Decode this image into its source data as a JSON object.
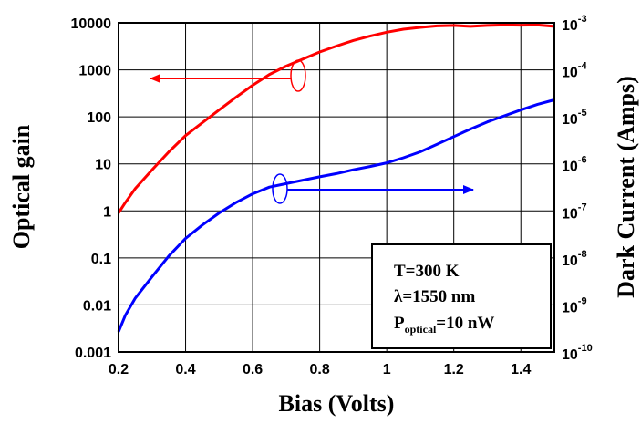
{
  "chart_data": {
    "type": "line",
    "xlabel": "Bias (Volts)",
    "ylabel": "Optical gain",
    "y2label": "Dark Current (Amps)",
    "xlim": [
      0.2,
      1.5
    ],
    "ylim": [
      0.001,
      10000
    ],
    "y2lim": [
      1e-10,
      0.001
    ],
    "yscale": "log",
    "y2scale": "log",
    "grid": true,
    "x_ticks": [
      "0.2",
      "0.4",
      "0.6",
      "0.8",
      "1",
      "1.2",
      "1.4"
    ],
    "y_ticks": [
      "0.001",
      "0.01",
      "0.1",
      "1",
      "10",
      "100",
      "1000",
      "10000"
    ],
    "y2_ticks": [
      {
        "base": "10",
        "exp": "-10"
      },
      {
        "base": "10",
        "exp": "-9"
      },
      {
        "base": "10",
        "exp": "-8"
      },
      {
        "base": "10",
        "exp": "-7"
      },
      {
        "base": "10",
        "exp": "-6"
      },
      {
        "base": "10",
        "exp": "-5"
      },
      {
        "base": "10",
        "exp": "-4"
      },
      {
        "base": "10",
        "exp": "-3"
      }
    ],
    "series": [
      {
        "axis": "left",
        "color": "#ff0000",
        "x": [
          0.2,
          0.22,
          0.25,
          0.3,
          0.35,
          0.4,
          0.45,
          0.5,
          0.55,
          0.6,
          0.65,
          0.7,
          0.75,
          0.8,
          0.85,
          0.9,
          0.95,
          1.0,
          1.05,
          1.1,
          1.15,
          1.2,
          1.25,
          1.3,
          1.35,
          1.4,
          1.45,
          1.5
        ],
        "y": [
          0.9,
          1.5,
          3.0,
          7.5,
          18,
          40,
          75,
          140,
          260,
          470,
          800,
          1200,
          1700,
          2400,
          3200,
          4200,
          5200,
          6300,
          7300,
          8000,
          8600,
          8800,
          8400,
          8800,
          9000,
          8900,
          9000,
          8400
        ]
      },
      {
        "axis": "right",
        "color": "#0000ff",
        "x": [
          0.2,
          0.22,
          0.25,
          0.3,
          0.35,
          0.4,
          0.45,
          0.5,
          0.55,
          0.6,
          0.65,
          0.7,
          0.75,
          0.8,
          0.85,
          0.9,
          0.95,
          1.0,
          1.05,
          1.1,
          1.15,
          1.2,
          1.25,
          1.3,
          1.35,
          1.4,
          1.45,
          1.5
        ],
        "y": [
          2.7e-10,
          6e-10,
          1.4e-09,
          4e-09,
          1.1e-08,
          2.6e-08,
          5e-08,
          9e-08,
          1.5e-07,
          2.3e-07,
          3.2e-07,
          3.8e-07,
          4.5e-07,
          5.3e-07,
          6.2e-07,
          7.5e-07,
          8.8e-07,
          1.05e-06,
          1.35e-06,
          1.8e-06,
          2.6e-06,
          3.8e-06,
          5.5e-06,
          7.8e-06,
          1.05e-05,
          1.4e-05,
          1.85e-05,
          2.3e-05
        ]
      }
    ],
    "annotation": {
      "line1": "T=300 K",
      "line2": "λ=1550 nm",
      "line3_main": "P",
      "line3_sub": "optical",
      "line3_rest": "=10 nW"
    }
  }
}
